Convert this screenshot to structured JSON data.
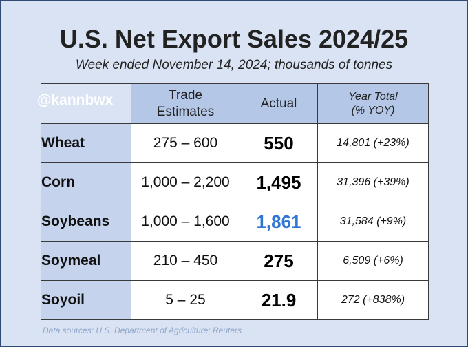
{
  "chart_data": {
    "type": "table",
    "title": "U.S. Net Export Sales 2024/25",
    "subtitle": "Week ended November 14, 2024; thousands of tonnes",
    "columns": [
      "Trade Estimates",
      "Actual",
      "Year Total (% YOY)"
    ],
    "header": {
      "estimates_line1": "Trade",
      "estimates_line2": "Estimates",
      "actual": "Actual",
      "total_line1": "Year Total",
      "total_line2": "(% YOY)"
    },
    "rows": [
      {
        "crop": "Wheat",
        "estimate": "275 – 600",
        "actual": "550",
        "year_total": "14,801",
        "yoy": "(+23%)"
      },
      {
        "crop": "Corn",
        "estimate": "1,000 – 2,200",
        "actual": "1,495",
        "year_total": "31,396",
        "yoy": "(+39%)"
      },
      {
        "crop": "Soybeans",
        "estimate": "1,000 – 1,600",
        "actual": "1,861",
        "year_total": "31,584",
        "yoy": "(+9%)"
      },
      {
        "crop": "Soymeal",
        "estimate": "210 – 450",
        "actual": "275",
        "year_total": "6,509",
        "yoy": "(+6%)"
      },
      {
        "crop": "Soyoil",
        "estimate": "5 – 25",
        "actual": "21.9",
        "year_total": "272",
        "yoy": "(+838%)"
      }
    ],
    "highlight_color": "#2e75d6",
    "watermark": "@kannbwx",
    "source": "Data sources: U.S. Department of Agriculture; Reuters"
  }
}
